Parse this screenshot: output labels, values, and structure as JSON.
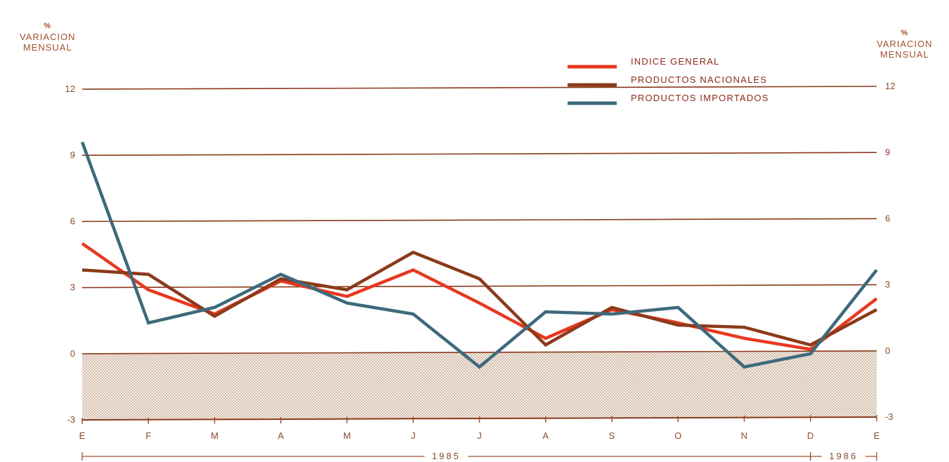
{
  "chart_data": {
    "type": "line",
    "left_axis_title": {
      "unit": "%",
      "label_1": "VARIACION",
      "label_2": "MENSUAL"
    },
    "right_axis_title": {
      "unit": "%",
      "label_1": "VARIACION",
      "label_2": "MENSUAL"
    },
    "categories": [
      "E",
      "F",
      "M",
      "A",
      "M",
      "J",
      "J",
      "A",
      "S",
      "O",
      "N",
      "D",
      "E"
    ],
    "yticks": [
      12,
      9,
      6,
      3,
      0,
      -3
    ],
    "ylim": [
      -3,
      12
    ],
    "grid": true,
    "legend_position": "top-right",
    "years": [
      {
        "label": "1985",
        "start": 0,
        "end": 11
      },
      {
        "label": "1986",
        "start": 11,
        "end": 12
      }
    ],
    "series": [
      {
        "name": "INDICE GENERAL",
        "color": "#e8381f",
        "values": [
          5.0,
          2.9,
          1.8,
          3.3,
          2.6,
          3.8,
          2.3,
          0.7,
          2.0,
          1.4,
          0.7,
          0.2,
          2.5
        ]
      },
      {
        "name": "PRODUCTOS NACIONALES",
        "color": "#8b3a1a",
        "values": [
          3.8,
          3.6,
          1.7,
          3.4,
          2.9,
          4.6,
          3.4,
          0.4,
          2.1,
          1.3,
          1.2,
          0.4,
          2.0
        ]
      },
      {
        "name": "PRODUCTOS IMPORTADOS",
        "color": "#3d6a7c",
        "values": [
          9.6,
          1.4,
          2.1,
          3.6,
          2.3,
          1.8,
          -0.6,
          1.9,
          1.8,
          2.1,
          -0.6,
          0.0,
          3.8
        ]
      }
    ]
  }
}
